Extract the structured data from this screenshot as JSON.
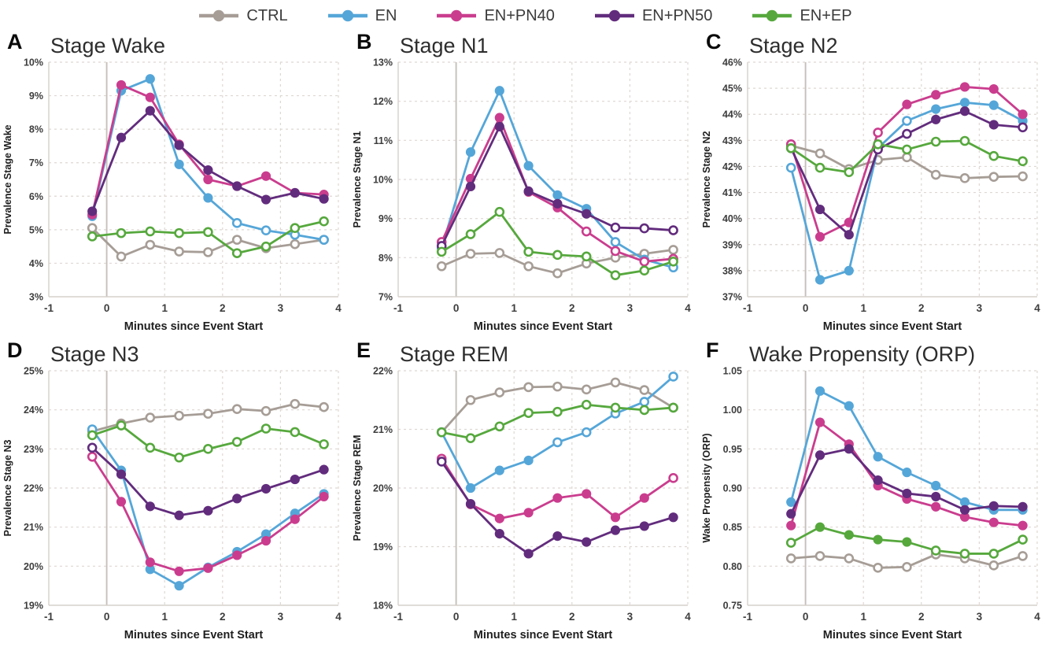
{
  "legend": {
    "items": [
      {
        "label": "CTRL",
        "color": "#a69d96"
      },
      {
        "label": "EN",
        "color": "#55a6d8"
      },
      {
        "label": "EN+PN40",
        "color": "#ca3d8e"
      },
      {
        "label": "EN+PN50",
        "color": "#622c7d"
      },
      {
        "label": "EN+EP",
        "color": "#56a83d"
      }
    ]
  },
  "style": {
    "grid_color": "#ded8d3",
    "axis_color": "#d6d0cb",
    "zero_line_color": "#c6c0bb",
    "tick_text_color": "#3d3d3d",
    "axis_title_color": "#1e1e1e",
    "open_marker_fill": "#ffffff"
  },
  "chart_data": [
    {
      "panel": "A",
      "type": "line",
      "title": "Stage Wake",
      "xlabel": "Minutes since Event Start",
      "ylabel": "Prevalence Stage Wake",
      "ylim": [
        3,
        10
      ],
      "ytick_step": 1,
      "yformat": "percent",
      "xlim": [
        -1,
        4
      ],
      "x_ticks": [
        -1,
        0,
        1,
        2,
        3,
        4
      ],
      "x": [
        -0.25,
        0.25,
        0.75,
        1.25,
        1.75,
        2.25,
        2.75,
        3.25,
        3.75
      ],
      "series": [
        {
          "name": "CTRL",
          "values": [
            5.05,
            4.2,
            4.55,
            4.35,
            4.33,
            4.7,
            4.45,
            4.57,
            4.7
          ],
          "filled": [
            false,
            false,
            false,
            false,
            false,
            false,
            false,
            false,
            false
          ]
        },
        {
          "name": "EN",
          "values": [
            5.4,
            9.15,
            9.5,
            6.95,
            5.95,
            5.2,
            4.98,
            4.85,
            4.7
          ],
          "filled": [
            true,
            true,
            true,
            true,
            true,
            false,
            false,
            false,
            false
          ]
        },
        {
          "name": "EN+PN40",
          "values": [
            5.45,
            9.32,
            8.95,
            7.55,
            6.5,
            6.3,
            6.6,
            6.1,
            6.05
          ],
          "filled": [
            true,
            true,
            true,
            true,
            true,
            true,
            true,
            true,
            true
          ]
        },
        {
          "name": "EN+PN50",
          "values": [
            5.55,
            7.75,
            8.55,
            7.52,
            6.78,
            6.3,
            5.9,
            6.1,
            5.92
          ],
          "filled": [
            true,
            true,
            true,
            true,
            true,
            true,
            true,
            true,
            true
          ]
        },
        {
          "name": "EN+EP",
          "values": [
            4.8,
            4.9,
            4.95,
            4.9,
            4.93,
            4.3,
            4.5,
            5.05,
            5.25
          ],
          "filled": [
            false,
            false,
            false,
            false,
            false,
            false,
            false,
            false,
            false
          ]
        }
      ]
    },
    {
      "panel": "B",
      "type": "line",
      "title": "Stage N1",
      "xlabel": "Minutes since Event Start",
      "ylabel": "Prevalence Stage N1",
      "ylim": [
        7,
        13
      ],
      "ytick_step": 1,
      "yformat": "percent",
      "xlim": [
        -1,
        4
      ],
      "x_ticks": [
        -1,
        0,
        1,
        2,
        3,
        4
      ],
      "x": [
        -0.25,
        0.25,
        0.75,
        1.25,
        1.75,
        2.25,
        2.75,
        3.25,
        3.75
      ],
      "series": [
        {
          "name": "CTRL",
          "values": [
            7.78,
            8.1,
            8.12,
            7.78,
            7.6,
            7.85,
            8.0,
            8.1,
            8.2
          ],
          "filled": [
            false,
            false,
            false,
            false,
            false,
            false,
            false,
            false,
            false
          ]
        },
        {
          "name": "EN",
          "values": [
            8.25,
            10.7,
            12.27,
            10.35,
            9.6,
            9.25,
            8.4,
            7.95,
            7.75
          ],
          "filled": [
            false,
            true,
            true,
            true,
            true,
            true,
            false,
            false,
            false
          ]
        },
        {
          "name": "EN+PN40",
          "values": [
            8.4,
            10.02,
            11.58,
            9.68,
            9.28,
            8.67,
            8.17,
            7.9,
            7.97
          ],
          "filled": [
            false,
            true,
            true,
            true,
            true,
            false,
            false,
            false,
            false
          ]
        },
        {
          "name": "EN+PN50",
          "values": [
            8.3,
            9.82,
            11.35,
            9.7,
            9.38,
            9.12,
            8.77,
            8.75,
            8.7
          ],
          "filled": [
            false,
            true,
            true,
            true,
            true,
            true,
            false,
            false,
            false
          ]
        },
        {
          "name": "EN+EP",
          "values": [
            8.15,
            8.6,
            9.17,
            8.15,
            8.07,
            8.03,
            7.55,
            7.67,
            7.9
          ],
          "filled": [
            false,
            false,
            false,
            false,
            false,
            false,
            false,
            false,
            false
          ]
        }
      ]
    },
    {
      "panel": "C",
      "type": "line",
      "title": "Stage N2",
      "xlabel": "Minutes since Event Start",
      "ylabel": "Prevalence Stage N2",
      "ylim": [
        37,
        46
      ],
      "ytick_step": 1,
      "yformat": "percent",
      "xlim": [
        -1,
        4
      ],
      "x_ticks": [
        -1,
        0,
        1,
        2,
        3,
        4
      ],
      "x": [
        -0.25,
        0.25,
        0.75,
        1.25,
        1.75,
        2.25,
        2.75,
        3.25,
        3.75
      ],
      "series": [
        {
          "name": "CTRL",
          "values": [
            42.8,
            42.5,
            41.9,
            42.25,
            42.35,
            41.68,
            41.55,
            41.6,
            41.62
          ],
          "filled": [
            false,
            false,
            false,
            false,
            false,
            false,
            false,
            false,
            false
          ]
        },
        {
          "name": "EN",
          "values": [
            41.95,
            37.65,
            38.0,
            42.7,
            43.75,
            44.2,
            44.45,
            44.35,
            43.75
          ],
          "filled": [
            false,
            true,
            true,
            false,
            false,
            true,
            true,
            true,
            true
          ]
        },
        {
          "name": "EN+PN40",
          "values": [
            42.85,
            39.3,
            39.85,
            43.3,
            44.38,
            44.75,
            45.05,
            44.97,
            44.0
          ],
          "filled": [
            false,
            true,
            true,
            false,
            true,
            true,
            true,
            true,
            true
          ]
        },
        {
          "name": "EN+PN50",
          "values": [
            42.7,
            40.35,
            39.38,
            42.65,
            43.25,
            43.8,
            44.12,
            43.6,
            43.5
          ],
          "filled": [
            false,
            true,
            true,
            false,
            false,
            true,
            true,
            true,
            false
          ]
        },
        {
          "name": "EN+EP",
          "values": [
            42.7,
            41.95,
            41.78,
            42.85,
            42.65,
            42.95,
            42.98,
            42.4,
            42.2
          ],
          "filled": [
            false,
            false,
            false,
            false,
            false,
            false,
            false,
            false,
            false
          ]
        }
      ]
    },
    {
      "panel": "D",
      "type": "line",
      "title": "Stage N3",
      "xlabel": "Minutes since Event Start",
      "ylabel": "Prevalence Stage N3",
      "ylim": [
        19,
        25
      ],
      "ytick_step": 1,
      "yformat": "percent",
      "xlim": [
        -1,
        4
      ],
      "x_ticks": [
        -1,
        0,
        1,
        2,
        3,
        4
      ],
      "x": [
        -0.25,
        0.25,
        0.75,
        1.25,
        1.75,
        2.25,
        2.75,
        3.25,
        3.75
      ],
      "series": [
        {
          "name": "CTRL",
          "values": [
            23.45,
            23.65,
            23.8,
            23.85,
            23.9,
            24.02,
            23.97,
            24.15,
            24.07
          ],
          "filled": [
            false,
            false,
            false,
            false,
            false,
            false,
            false,
            false,
            false
          ]
        },
        {
          "name": "EN",
          "values": [
            23.5,
            22.45,
            19.92,
            19.5,
            19.97,
            20.37,
            20.82,
            21.35,
            21.85
          ],
          "filled": [
            false,
            true,
            true,
            true,
            true,
            true,
            true,
            true,
            true
          ]
        },
        {
          "name": "EN+PN40",
          "values": [
            22.8,
            21.65,
            20.1,
            19.87,
            19.95,
            20.28,
            20.65,
            21.2,
            21.78
          ],
          "filled": [
            false,
            true,
            true,
            true,
            true,
            true,
            true,
            true,
            true
          ]
        },
        {
          "name": "EN+PN50",
          "values": [
            23.03,
            22.35,
            21.53,
            21.3,
            21.42,
            21.73,
            21.98,
            22.22,
            22.47
          ],
          "filled": [
            false,
            true,
            true,
            true,
            true,
            true,
            true,
            true,
            true
          ]
        },
        {
          "name": "EN+EP",
          "values": [
            23.35,
            23.6,
            23.03,
            22.78,
            23.0,
            23.18,
            23.52,
            23.43,
            23.12
          ],
          "filled": [
            false,
            false,
            false,
            false,
            false,
            false,
            false,
            false,
            false
          ]
        }
      ]
    },
    {
      "panel": "E",
      "type": "line",
      "title": "Stage REM",
      "xlabel": "Minutes since Event Start",
      "ylabel": "Prevalence Stage REM",
      "ylim": [
        18,
        22
      ],
      "ytick_step": 1,
      "yformat": "percent",
      "xlim": [
        -1,
        4
      ],
      "x_ticks": [
        -1,
        0,
        1,
        2,
        3,
        4
      ],
      "x": [
        -0.25,
        0.25,
        0.75,
        1.25,
        1.75,
        2.25,
        2.75,
        3.25,
        3.75
      ],
      "series": [
        {
          "name": "CTRL",
          "values": [
            20.95,
            21.5,
            21.63,
            21.72,
            21.73,
            21.68,
            21.8,
            21.67,
            21.37
          ],
          "filled": [
            false,
            false,
            false,
            false,
            false,
            false,
            false,
            false,
            false
          ]
        },
        {
          "name": "EN",
          "values": [
            20.95,
            20.0,
            20.3,
            20.47,
            20.78,
            20.95,
            21.27,
            21.47,
            21.9
          ],
          "filled": [
            false,
            true,
            true,
            true,
            false,
            false,
            false,
            false,
            false
          ]
        },
        {
          "name": "EN+PN40",
          "values": [
            20.5,
            19.72,
            19.48,
            19.58,
            19.83,
            19.9,
            19.5,
            19.83,
            20.17
          ],
          "filled": [
            false,
            true,
            true,
            true,
            true,
            true,
            true,
            true,
            false
          ]
        },
        {
          "name": "EN+PN50",
          "values": [
            20.45,
            19.73,
            19.22,
            18.88,
            19.18,
            19.08,
            19.28,
            19.35,
            19.5
          ],
          "filled": [
            false,
            true,
            true,
            true,
            true,
            true,
            true,
            true,
            true
          ]
        },
        {
          "name": "EN+EP",
          "values": [
            20.95,
            20.85,
            21.05,
            21.28,
            21.3,
            21.42,
            21.37,
            21.33,
            21.37
          ],
          "filled": [
            false,
            false,
            false,
            false,
            false,
            false,
            false,
            false,
            false
          ]
        }
      ]
    },
    {
      "panel": "F",
      "type": "line",
      "title": "Wake Propensity (ORP)",
      "xlabel": "Minutes since Event Start",
      "ylabel": "Wake Propensity (ORP)",
      "ylim": [
        0.75,
        1.05
      ],
      "ytick_step": 0.05,
      "yformat": "decimal2",
      "xlim": [
        -1,
        4
      ],
      "x_ticks": [
        -1,
        0,
        1,
        2,
        3,
        4
      ],
      "x": [
        -0.25,
        0.25,
        0.75,
        1.25,
        1.75,
        2.25,
        2.75,
        3.25,
        3.75
      ],
      "series": [
        {
          "name": "CTRL",
          "values": [
            0.81,
            0.813,
            0.81,
            0.798,
            0.799,
            0.815,
            0.81,
            0.801,
            0.813
          ],
          "filled": [
            false,
            false,
            false,
            false,
            false,
            false,
            false,
            false,
            false
          ]
        },
        {
          "name": "EN",
          "values": [
            0.882,
            1.024,
            1.005,
            0.94,
            0.92,
            0.903,
            0.882,
            0.872,
            0.872
          ],
          "filled": [
            true,
            true,
            true,
            true,
            true,
            true,
            true,
            true,
            true
          ]
        },
        {
          "name": "EN+PN40",
          "values": [
            0.852,
            0.984,
            0.956,
            0.903,
            0.886,
            0.876,
            0.863,
            0.856,
            0.852
          ],
          "filled": [
            true,
            true,
            true,
            true,
            true,
            true,
            true,
            true,
            true
          ]
        },
        {
          "name": "EN+PN50",
          "values": [
            0.867,
            0.942,
            0.95,
            0.91,
            0.893,
            0.889,
            0.872,
            0.877,
            0.876
          ],
          "filled": [
            true,
            true,
            true,
            true,
            true,
            true,
            true,
            true,
            true
          ]
        },
        {
          "name": "EN+EP",
          "values": [
            0.83,
            0.85,
            0.84,
            0.834,
            0.831,
            0.82,
            0.816,
            0.816,
            0.834
          ],
          "filled": [
            false,
            true,
            true,
            true,
            true,
            false,
            false,
            false,
            false
          ]
        }
      ]
    }
  ]
}
